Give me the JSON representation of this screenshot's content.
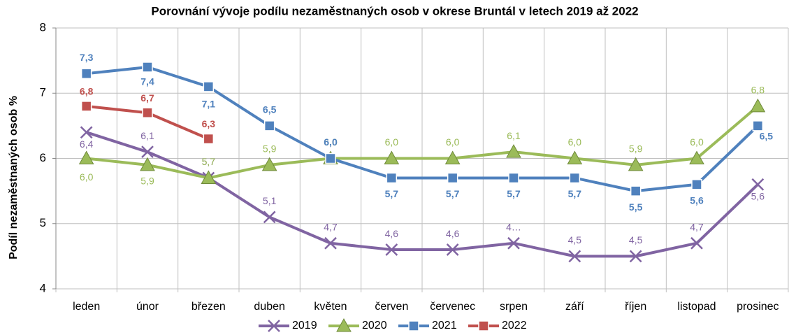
{
  "chart_data": {
    "type": "line",
    "title": "Porovnání vývoje podílu nezaměstnaných osob v okrese Bruntál v letech 2019 až 2022",
    "y_label": "Podíl nezaměstnaných osob %",
    "categories": [
      "leden",
      "únor",
      "březen",
      "duben",
      "květen",
      "červen",
      "červenec",
      "srpen",
      "září",
      "říjen",
      "listopad",
      "prosinec"
    ],
    "ylim": [
      4,
      8
    ],
    "yticks": [
      4,
      5,
      6,
      7,
      8
    ],
    "grid": true,
    "legend": "bottom",
    "series": [
      {
        "name": "2019",
        "color": "#8064a2",
        "marker": "x",
        "values": [
          6.4,
          6.1,
          5.7,
          5.1,
          4.7,
          4.6,
          4.6,
          4.7,
          4.5,
          4.5,
          4.7,
          5.6
        ],
        "value_labels": [
          "6,4",
          "6,1",
          "5,7",
          "5,1",
          "4,7",
          "4,6",
          "4,6",
          "4…",
          "4,5",
          "4,5",
          "4,7",
          "5,6"
        ]
      },
      {
        "name": "2020",
        "color": "#9bbb59",
        "marker": "triangle",
        "values": [
          6.0,
          5.9,
          5.7,
          5.9,
          6.0,
          6.0,
          6.0,
          6.1,
          6.0,
          5.9,
          6.0,
          6.8
        ],
        "value_labels": [
          "6,0",
          "5,9",
          "5,7",
          "5,9",
          "6,0",
          "6,0",
          "6,0",
          "6,1",
          "6,0",
          "5,9",
          "6,0",
          "6,8"
        ]
      },
      {
        "name": "2021",
        "color": "#4f81bd",
        "marker": "square",
        "values": [
          7.3,
          7.4,
          7.1,
          6.5,
          6.0,
          5.7,
          5.7,
          5.7,
          5.7,
          5.5,
          5.6,
          6.5
        ],
        "value_labels": [
          "7,3",
          "7,4",
          "7,1",
          "6,5",
          "6,0",
          "5,7",
          "5,7",
          "5,7",
          "5,7",
          "5,5",
          "5,6",
          "6,5"
        ]
      },
      {
        "name": "2022",
        "color": "#c0504d",
        "marker": "square",
        "values": [
          6.8,
          6.7,
          6.3,
          null,
          null,
          null,
          null,
          null,
          null,
          null,
          null,
          null
        ],
        "value_labels": [
          "6,8",
          "6,7",
          "6,3",
          null,
          null,
          null,
          null,
          null,
          null,
          null,
          null,
          null
        ]
      }
    ]
  }
}
